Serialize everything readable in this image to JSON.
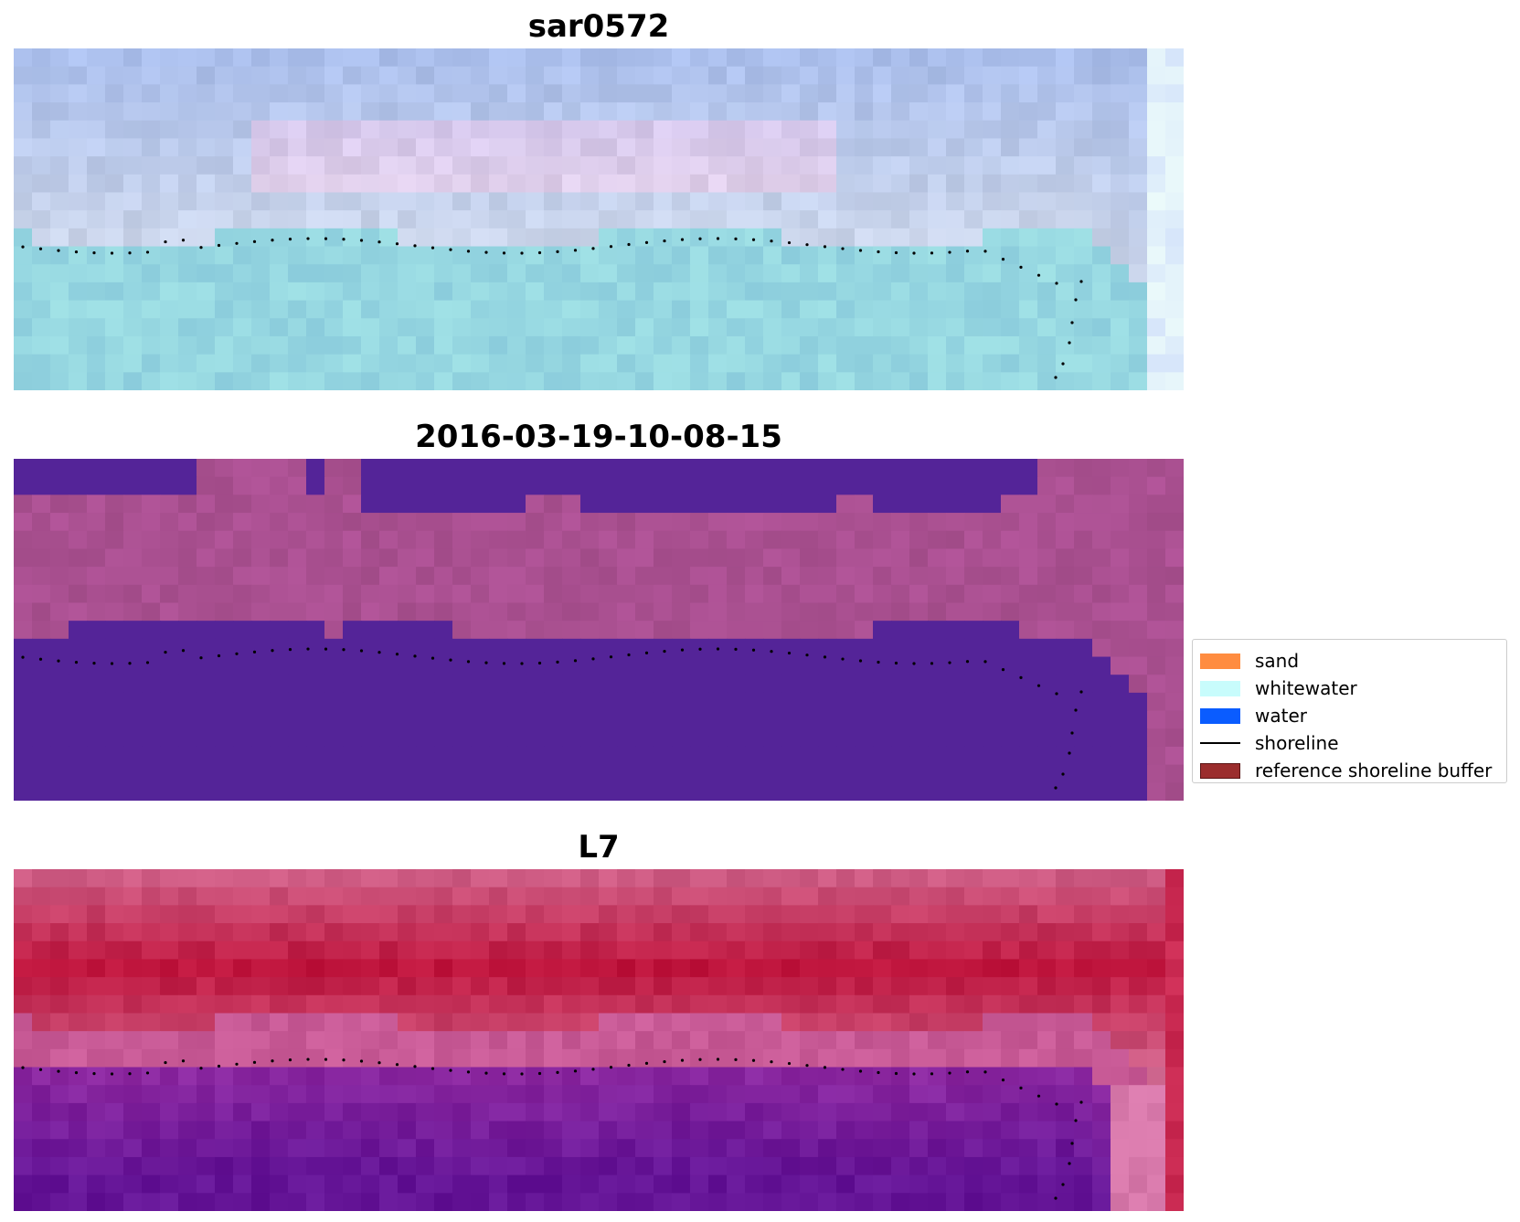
{
  "panels": [
    {
      "title": "sar0572",
      "kind": "rgb"
    },
    {
      "title": "2016-03-19-10-08-15",
      "kind": "classified"
    },
    {
      "title": "L7",
      "kind": "index"
    }
  ],
  "legend": {
    "items": [
      {
        "label": "sand",
        "color": "#ff8c40",
        "type": "patch"
      },
      {
        "label": "whitewater",
        "color": "#c8fcfc",
        "type": "patch"
      },
      {
        "label": "water",
        "color": "#0a5cff",
        "type": "patch"
      },
      {
        "label": "shoreline",
        "color": "#000000",
        "type": "line"
      },
      {
        "label": "reference shoreline buffer",
        "color": "#9b2d2d",
        "type": "patch"
      }
    ]
  }
}
